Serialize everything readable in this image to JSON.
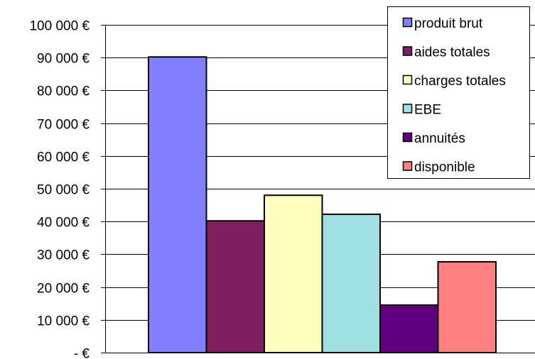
{
  "chart_data": {
    "type": "bar",
    "title": "",
    "xlabel": "",
    "ylabel": "",
    "ylim": [
      0,
      100000
    ],
    "grid": true,
    "legend_position": "top-right",
    "y_ticks": [
      {
        "value": 0,
        "label": "-      €"
      },
      {
        "value": 10000,
        "label": "10 000 €"
      },
      {
        "value": 20000,
        "label": "20 000 €"
      },
      {
        "value": 30000,
        "label": "30 000 €"
      },
      {
        "value": 40000,
        "label": "40 000 €"
      },
      {
        "value": 50000,
        "label": "50 000 €"
      },
      {
        "value": 60000,
        "label": "60 000 €"
      },
      {
        "value": 70000,
        "label": "70 000 €"
      },
      {
        "value": 80000,
        "label": "80 000 €"
      },
      {
        "value": 90000,
        "label": "90 000 €"
      },
      {
        "value": 100000,
        "label": "100 000 €"
      }
    ],
    "series": [
      {
        "name": "produit brut",
        "value": 90200,
        "color": "#8080ff"
      },
      {
        "name": "aides totales",
        "value": 40200,
        "color": "#802060"
      },
      {
        "name": "charges totales",
        "value": 48000,
        "color": "#ffffc0"
      },
      {
        "name": "EBE",
        "value": 42200,
        "color": "#a0e0e0"
      },
      {
        "name": "annuités",
        "value": 14500,
        "color": "#600080"
      },
      {
        "name": "disponible",
        "value": 27700,
        "color": "#ff8080"
      }
    ]
  }
}
